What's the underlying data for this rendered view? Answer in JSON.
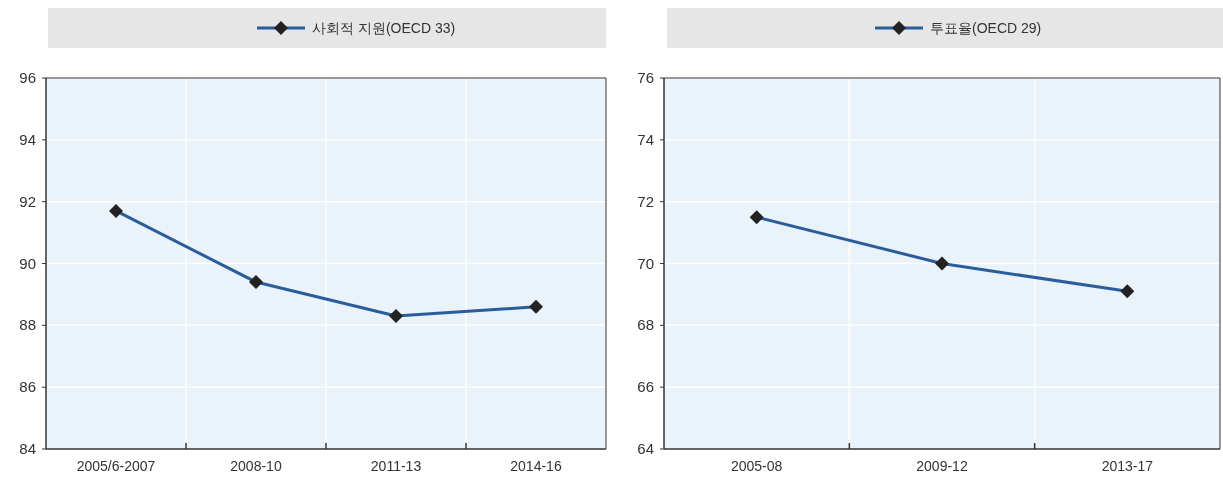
{
  "chart_data": [
    {
      "type": "line",
      "categories": [
        "2005/6-2007",
        "2008-10",
        "2011-13",
        "2014-16"
      ],
      "series": [
        {
          "name": "사회적 지원(OECD 33)",
          "color": "#2b5c9c",
          "values": [
            91.7,
            89.4,
            88.3,
            88.6
          ]
        }
      ],
      "ylim": [
        84,
        96
      ],
      "yticks": [
        84,
        86,
        88,
        90,
        92,
        94,
        96
      ],
      "grid": true,
      "legend": "top",
      "marker": "diamond",
      "line_style": "solid"
    },
    {
      "type": "line",
      "categories": [
        "2005-08",
        "2009-12",
        "2013-17"
      ],
      "series": [
        {
          "name": "투표율(OECD 29)",
          "color": "#2b5c9c",
          "values": [
            71.5,
            70.0,
            69.1
          ]
        }
      ],
      "ylim": [
        64,
        76
      ],
      "yticks": [
        64,
        66,
        68,
        70,
        72,
        74,
        76
      ],
      "grid": true,
      "legend": "top",
      "marker": "diamond",
      "line_style": "solid"
    }
  ]
}
